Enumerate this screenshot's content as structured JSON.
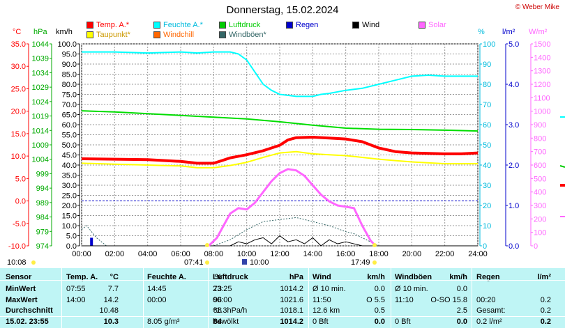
{
  "title": "Donnerstag, 15.02.2024",
  "copyright": "© Weber Mike",
  "legend": [
    {
      "label": "Temp. A.*",
      "color": "#ff0000"
    },
    {
      "label": "Feuchte A.*",
      "color": "#00ffff"
    },
    {
      "label": "Luftdruck",
      "color": "#00cc00"
    },
    {
      "label": "Regen",
      "color": "#0000cc"
    },
    {
      "label": "Wind",
      "color": "#000000"
    },
    {
      "label": "Solar",
      "color": "#ff66ff"
    },
    {
      "label": "Taupunkt*",
      "color": "#ffff00"
    },
    {
      "label": "Windchill",
      "color": "#ff6600"
    },
    {
      "label": "Windböen*",
      "color": "#336666"
    }
  ],
  "units": {
    "temp": "°C",
    "pressure": "hPa",
    "wind": "km/h",
    "humidity": "%",
    "rain": "l/m²",
    "solar": "W/m²"
  },
  "sun": {
    "sunrise": "07:41",
    "noon": "10:00",
    "sunset": "17:49",
    "moon_rise": "10:08"
  },
  "chart_data": {
    "type": "line",
    "x_ticks": [
      "00:00",
      "02:00",
      "04:00",
      "06:00",
      "08:00",
      "10:00",
      "12:00",
      "14:00",
      "16:00",
      "18:00",
      "20:00",
      "22:00",
      "24:00"
    ],
    "axes": {
      "temp": {
        "range": [
          -10.0,
          35.0
        ],
        "ticks": [
          "35.0",
          "30.0",
          "25.0",
          "20.0",
          "15.0",
          "10.0",
          "5.0",
          "0.0",
          "-5.0",
          "-10.0"
        ],
        "color": "#ff0000"
      },
      "pressure": {
        "range": [
          974,
          1044
        ],
        "ticks": [
          "1044",
          "1039",
          "1034",
          "1029",
          "1024",
          "1019",
          "1014",
          "1009",
          "1004",
          "999",
          "994",
          "989",
          "984",
          "979",
          "974"
        ],
        "color": "#00aa00"
      },
      "wind": {
        "range": [
          0,
          100
        ],
        "ticks": [
          "100.0",
          "95.0",
          "90.0",
          "85.0",
          "80.0",
          "75.0",
          "70.0",
          "65.0",
          "60.0",
          "55.0",
          "50.0",
          "45.0",
          "40.0",
          "35.0",
          "30.0",
          "25.0",
          "20.0",
          "15.0",
          "10.0",
          "5.0",
          "0.0"
        ],
        "color": "#000000"
      },
      "humidity": {
        "range": [
          0,
          100
        ],
        "ticks": [
          "100",
          "90",
          "80",
          "70",
          "60",
          "50",
          "40",
          "30",
          "20",
          "10",
          "0"
        ],
        "color": "#00bbdd"
      },
      "rain": {
        "range": [
          0,
          5.0
        ],
        "ticks": [
          "5.0",
          "4.0",
          "3.0",
          "2.0",
          "1.0",
          "0.0"
        ],
        "color": "#0000cc"
      },
      "solar": {
        "range": [
          0,
          1500
        ],
        "ticks": [
          "1500",
          "1400",
          "1300",
          "1200",
          "1100",
          "1000",
          "900",
          "800",
          "700",
          "600",
          "500",
          "400",
          "300",
          "200",
          "100",
          "0"
        ],
        "color": "#ff66ff"
      }
    },
    "series": [
      {
        "name": "Feuchte A.*",
        "axis": "humidity",
        "color": "#00ffff",
        "width": 2,
        "x": [
          0,
          2,
          4,
          6,
          7,
          8,
          9,
          9.5,
          10,
          10.5,
          11,
          11.5,
          12,
          13,
          14,
          14.5,
          15,
          16,
          17,
          18,
          19,
          20,
          21,
          22,
          23,
          24
        ],
        "y": [
          96,
          96,
          95.5,
          96,
          95.5,
          96,
          96,
          95,
          92,
          86,
          80,
          77,
          75,
          74,
          74,
          75,
          75.5,
          77,
          78,
          80,
          82,
          84,
          84.5,
          84,
          84,
          84
        ]
      },
      {
        "name": "Luftdruck",
        "axis": "pressure",
        "color": "#00dd00",
        "width": 2,
        "x": [
          0,
          2,
          4,
          6,
          8,
          10,
          12,
          14,
          16,
          18,
          20,
          22,
          24
        ],
        "y": [
          1020.8,
          1020.4,
          1019.8,
          1019.2,
          1018.6,
          1018,
          1017,
          1015.8,
          1014.8,
          1014.4,
          1014.3,
          1014.1,
          1013.8
        ]
      },
      {
        "name": "Taupunkt*",
        "axis": "temp",
        "color": "#ffff00",
        "width": 2,
        "x": [
          0,
          2,
          4,
          6,
          7,
          8,
          9,
          10,
          11,
          12,
          13,
          14,
          15,
          16,
          17,
          18,
          19,
          20,
          22,
          24
        ],
        "y": [
          8.4,
          8.2,
          8.0,
          7.8,
          7.4,
          7.4,
          7.9,
          8.6,
          9.7,
          10.7,
          11.0,
          10.5,
          10.3,
          10.1,
          9.7,
          9.3,
          9.0,
          8.7,
          8.3,
          8.3
        ]
      },
      {
        "name": "Temp. A.*",
        "axis": "temp",
        "color": "#ff0000",
        "width": 4,
        "x": [
          0,
          2,
          4,
          6,
          7,
          8,
          8.5,
          9,
          10,
          11,
          12,
          12.5,
          13,
          14,
          15,
          16,
          17,
          18,
          19,
          20,
          21,
          22,
          23,
          24
        ],
        "y": [
          9.4,
          9.3,
          9.2,
          8.8,
          8.4,
          8.4,
          9.0,
          9.6,
          10.3,
          11.2,
          12.4,
          13.6,
          14.1,
          14.2,
          14.0,
          13.8,
          13.2,
          11.8,
          11.0,
          10.7,
          10.6,
          10.5,
          10.5,
          10.7
        ]
      },
      {
        "name": "Windböen*",
        "axis": "wind",
        "color": "#336666",
        "width": 1,
        "dash": "2,2",
        "x": [
          0,
          0.3,
          0.6,
          0.9,
          1.2,
          1.5,
          2,
          8,
          9,
          10,
          11,
          12,
          13,
          14,
          15,
          16,
          16.5,
          17,
          17.5,
          18,
          24
        ],
        "y": [
          8,
          10,
          7,
          4,
          2,
          0,
          0,
          0,
          3,
          8,
          12,
          13,
          14,
          12,
          10,
          7,
          6,
          4,
          2,
          0,
          0
        ]
      },
      {
        "name": "Wind",
        "axis": "wind",
        "color": "#000000",
        "width": 1,
        "x": [
          0,
          8,
          9,
          9.5,
          10,
          10.5,
          11,
          11.5,
          12,
          12.5,
          13,
          13.5,
          14,
          14.5,
          15,
          15.5,
          16,
          17,
          24
        ],
        "y": [
          0,
          0,
          0,
          2,
          1,
          3,
          4,
          1,
          5,
          2,
          3,
          1,
          4,
          0,
          3,
          1,
          2,
          0,
          0
        ]
      },
      {
        "name": "Solar",
        "axis": "solar",
        "color": "#ff66ff",
        "width": 3,
        "x": [
          7.7,
          8.2,
          8.6,
          9,
          9.5,
          10,
          10.5,
          11,
          11.5,
          12,
          12.5,
          13,
          13.5,
          14,
          14.5,
          15,
          15.5,
          16,
          16.5,
          17,
          17.5,
          17.8
        ],
        "y": [
          0,
          60,
          150,
          240,
          280,
          270,
          320,
          400,
          480,
          540,
          570,
          560,
          520,
          450,
          380,
          330,
          300,
          290,
          280,
          150,
          40,
          0
        ]
      }
    ],
    "rain_bars": {
      "axis": "rain",
      "color": "#0000cc",
      "x": [
        0.6
      ],
      "values": [
        0.2
      ]
    }
  },
  "summary": {
    "headers": [
      {
        "label": "Sensor"
      },
      {
        "label": "Temp. A.",
        "unit": "°C"
      },
      {
        "label": "Feuchte A.",
        "unit": "%"
      },
      {
        "label": "Luftdruck",
        "unit": "hPa"
      },
      {
        "label": "Wind",
        "unit": "km/h"
      },
      {
        "label": "Windböen",
        "unit": "km/h"
      },
      {
        "label": "Regen",
        "unit": "l/m²"
      }
    ],
    "rows": [
      {
        "label": "MinWert",
        "cells": [
          "07:55",
          "7.7",
          "14:45",
          "73",
          "23:25",
          "1014.2",
          "Ø 10 min.",
          "0.0",
          "Ø 10 min.",
          "0.0",
          "",
          ""
        ]
      },
      {
        "label": "MaxWert",
        "cells": [
          "14:00",
          "14.2",
          "00:00",
          "96",
          "00:00",
          "1021.6",
          "11:50",
          "O 5.5",
          "11:10",
          "O-SO 15.8",
          "00:20",
          "0.2"
        ]
      },
      {
        "label": "Durchschnitt",
        "cells": [
          "",
          "10.48",
          "",
          "88",
          "^1.3hPa/h",
          "1018.1",
          "12.6 km",
          "0.5",
          "",
          "2.5",
          "Gesamt:",
          "0.2"
        ]
      },
      {
        "label": "15.02. 23:55",
        "cells": [
          "",
          "10.3",
          "8.05 g/m³",
          "84",
          "bewölkt",
          "1014.2",
          "0 Bft",
          "0.0",
          "0 Bft",
          "0.0",
          "0.2 l/m²",
          "0.2"
        ]
      }
    ]
  }
}
